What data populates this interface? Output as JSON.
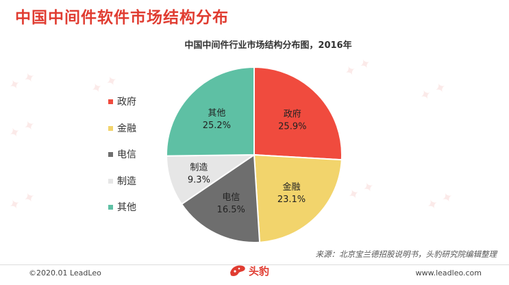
{
  "page_title": "中国中间件软件市场结构分布",
  "source_note": "来源：北京宝兰德招股说明书，头豹研究院编辑整理",
  "footer": {
    "copyright": "©2020.01 LeadLeo",
    "website": "www.leadleo.com",
    "logo_text": "头豹"
  },
  "colors": {
    "accent": "#e03c31"
  },
  "chart_data": {
    "type": "pie",
    "title": "中国中间件行业市场结构分布图，2016年",
    "legend_position": "left",
    "categories": [
      "政府",
      "金融",
      "电信",
      "制造",
      "其他"
    ],
    "values": [
      25.9,
      23.1,
      16.5,
      9.3,
      25.2
    ],
    "labels": [
      "25.9%",
      "23.1%",
      "16.5%",
      "9.3%",
      "25.2%"
    ],
    "colors": [
      "#f04b3e",
      "#f2d46c",
      "#6e6e6e",
      "#e6e6e6",
      "#5ec0a4"
    ],
    "start_angle_deg": 0,
    "direction": "clockwise"
  }
}
